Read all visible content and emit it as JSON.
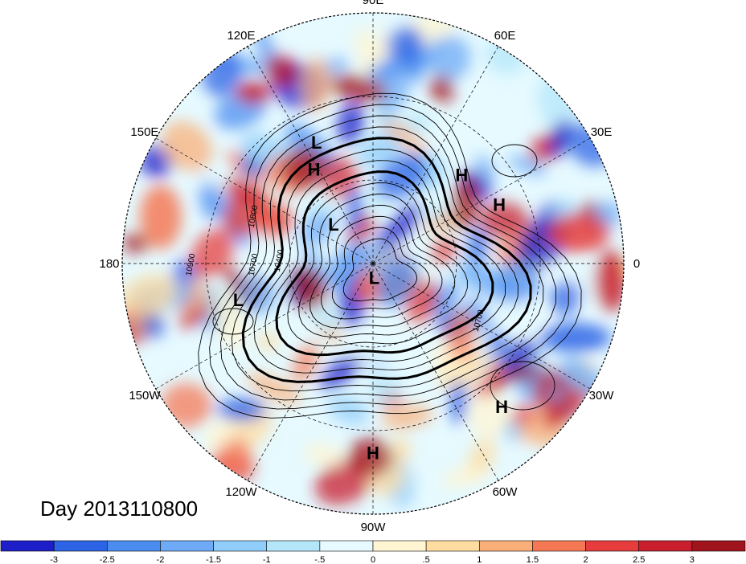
{
  "title": "Day 2013110800",
  "longitude_labels": [
    {
      "text": "90E",
      "lon": 90
    },
    {
      "text": "60E",
      "lon": 60
    },
    {
      "text": "30E",
      "lon": 30
    },
    {
      "text": "0",
      "lon": 0
    },
    {
      "text": "30W",
      "lon": -30
    },
    {
      "text": "60W",
      "lon": -60
    },
    {
      "text": "90W",
      "lon": -90
    },
    {
      "text": "120W",
      "lon": -120
    },
    {
      "text": "150W",
      "lon": -150
    },
    {
      "text": "180",
      "lon": 180
    },
    {
      "text": "150E",
      "lon": 150
    },
    {
      "text": "120E",
      "lon": 120
    }
  ],
  "pressure_centers": [
    {
      "type": "L",
      "lon": 115,
      "lat": 42
    },
    {
      "type": "H",
      "lon": 122,
      "lat": 50
    },
    {
      "type": "H",
      "lon": 45,
      "lat": 45
    },
    {
      "type": "H",
      "lon": 25,
      "lat": 40
    },
    {
      "type": "L",
      "lon": 135,
      "lat": 70
    },
    {
      "type": "L",
      "lon": -85,
      "lat": 85
    },
    {
      "type": "L",
      "lon": -165,
      "lat": 40
    },
    {
      "type": "H",
      "lon": -90,
      "lat": 22
    },
    {
      "type": "H",
      "lon": -48,
      "lat": 21
    }
  ],
  "contour_labels": [
    "10800",
    "10700",
    "10400",
    "10900",
    "10700"
  ],
  "colorbar": {
    "ticks": [
      "-3",
      "-2.5",
      "-2",
      "-1.5",
      "-1",
      "-.5",
      "0",
      ".5",
      "1",
      "1.5",
      "2",
      "2.5",
      "3"
    ],
    "colors": [
      "#1e1ec8",
      "#2d64e6",
      "#4b8cf0",
      "#6eaaf5",
      "#91cdfa",
      "#b4e6fa",
      "#e6faff",
      "#fff5d2",
      "#ffdca0",
      "#faaf78",
      "#f57855",
      "#e63c3c",
      "#c81e2d",
      "#a0141e"
    ]
  },
  "colors": {
    "background": "#ffffff",
    "contour": "#000000",
    "grid": "#000000"
  }
}
